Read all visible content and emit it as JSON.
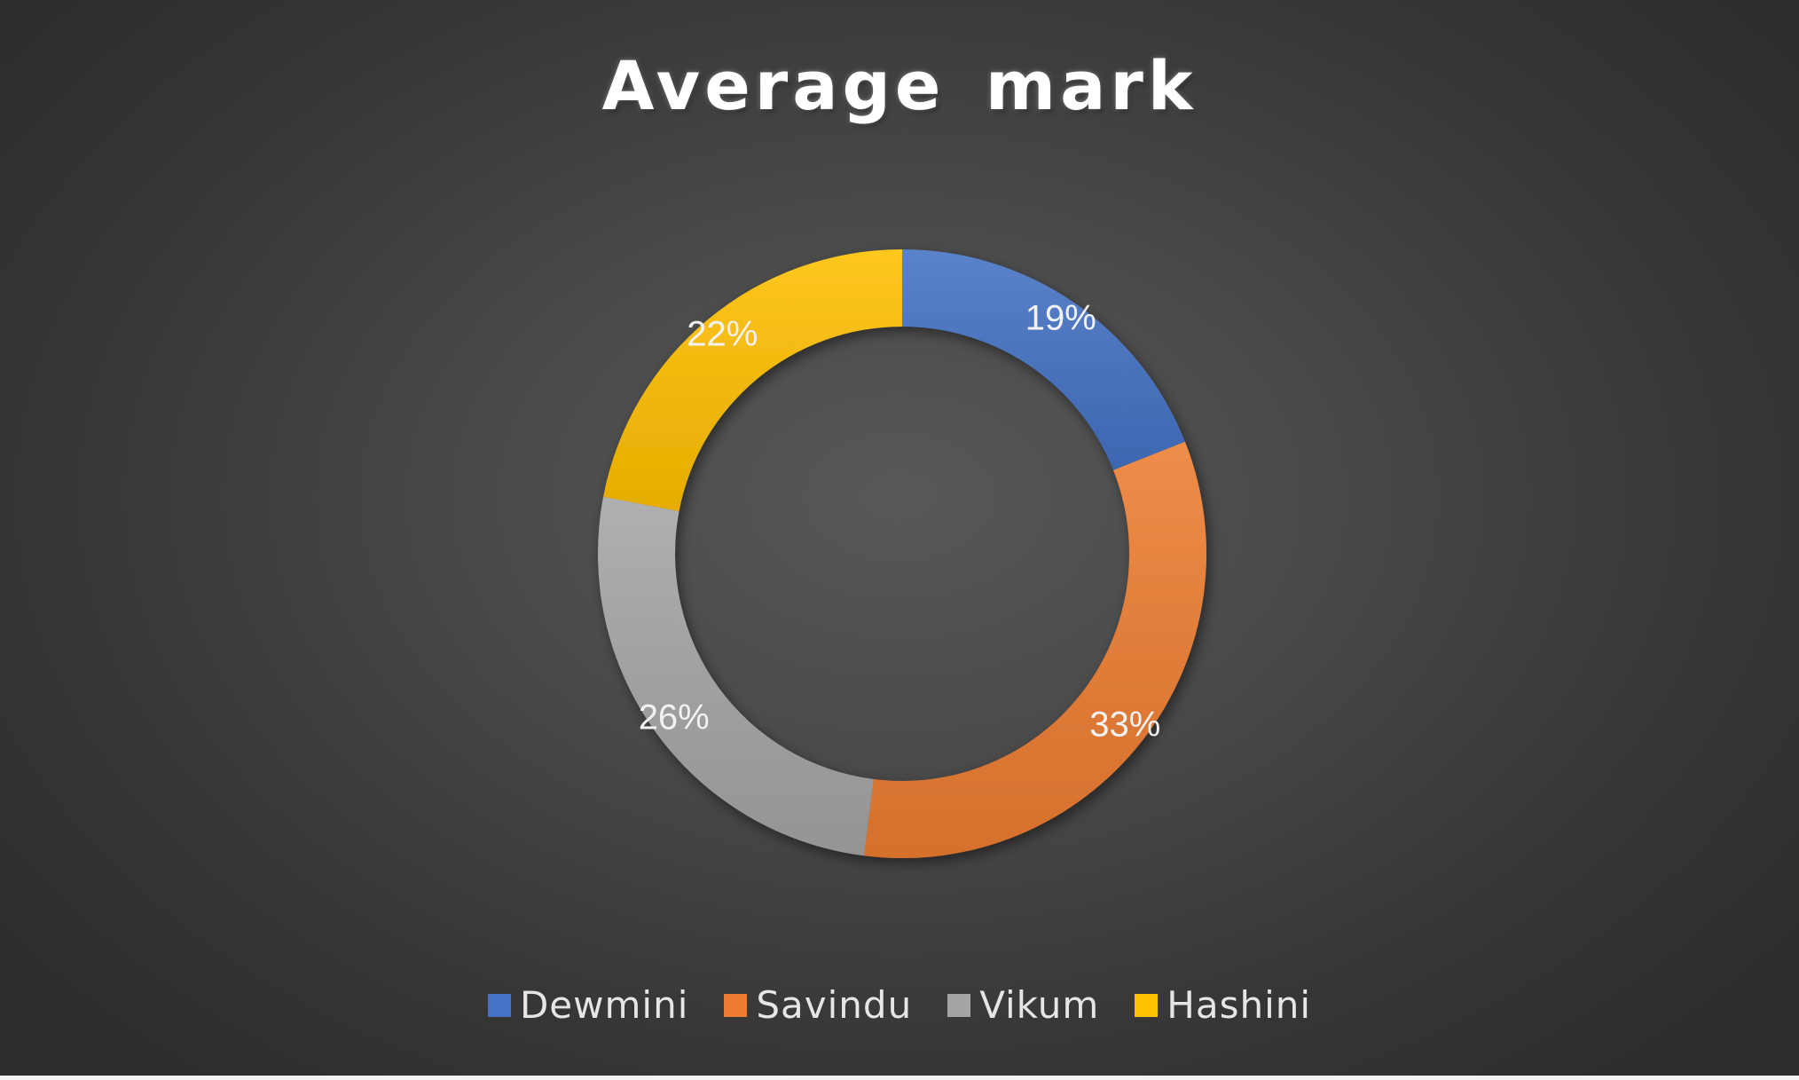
{
  "chart_data": {
    "type": "pie",
    "title": "Average mark",
    "categories": [
      "Dewmini",
      "Savindu",
      "Vikum",
      "Hashini"
    ],
    "values": [
      19,
      33,
      26,
      22
    ],
    "labels": [
      "19%",
      "33%",
      "26%",
      "22%"
    ],
    "colors": [
      "#4472C4",
      "#ED7D31",
      "#A5A5A5",
      "#FFC000"
    ],
    "legend_position": "bottom"
  }
}
